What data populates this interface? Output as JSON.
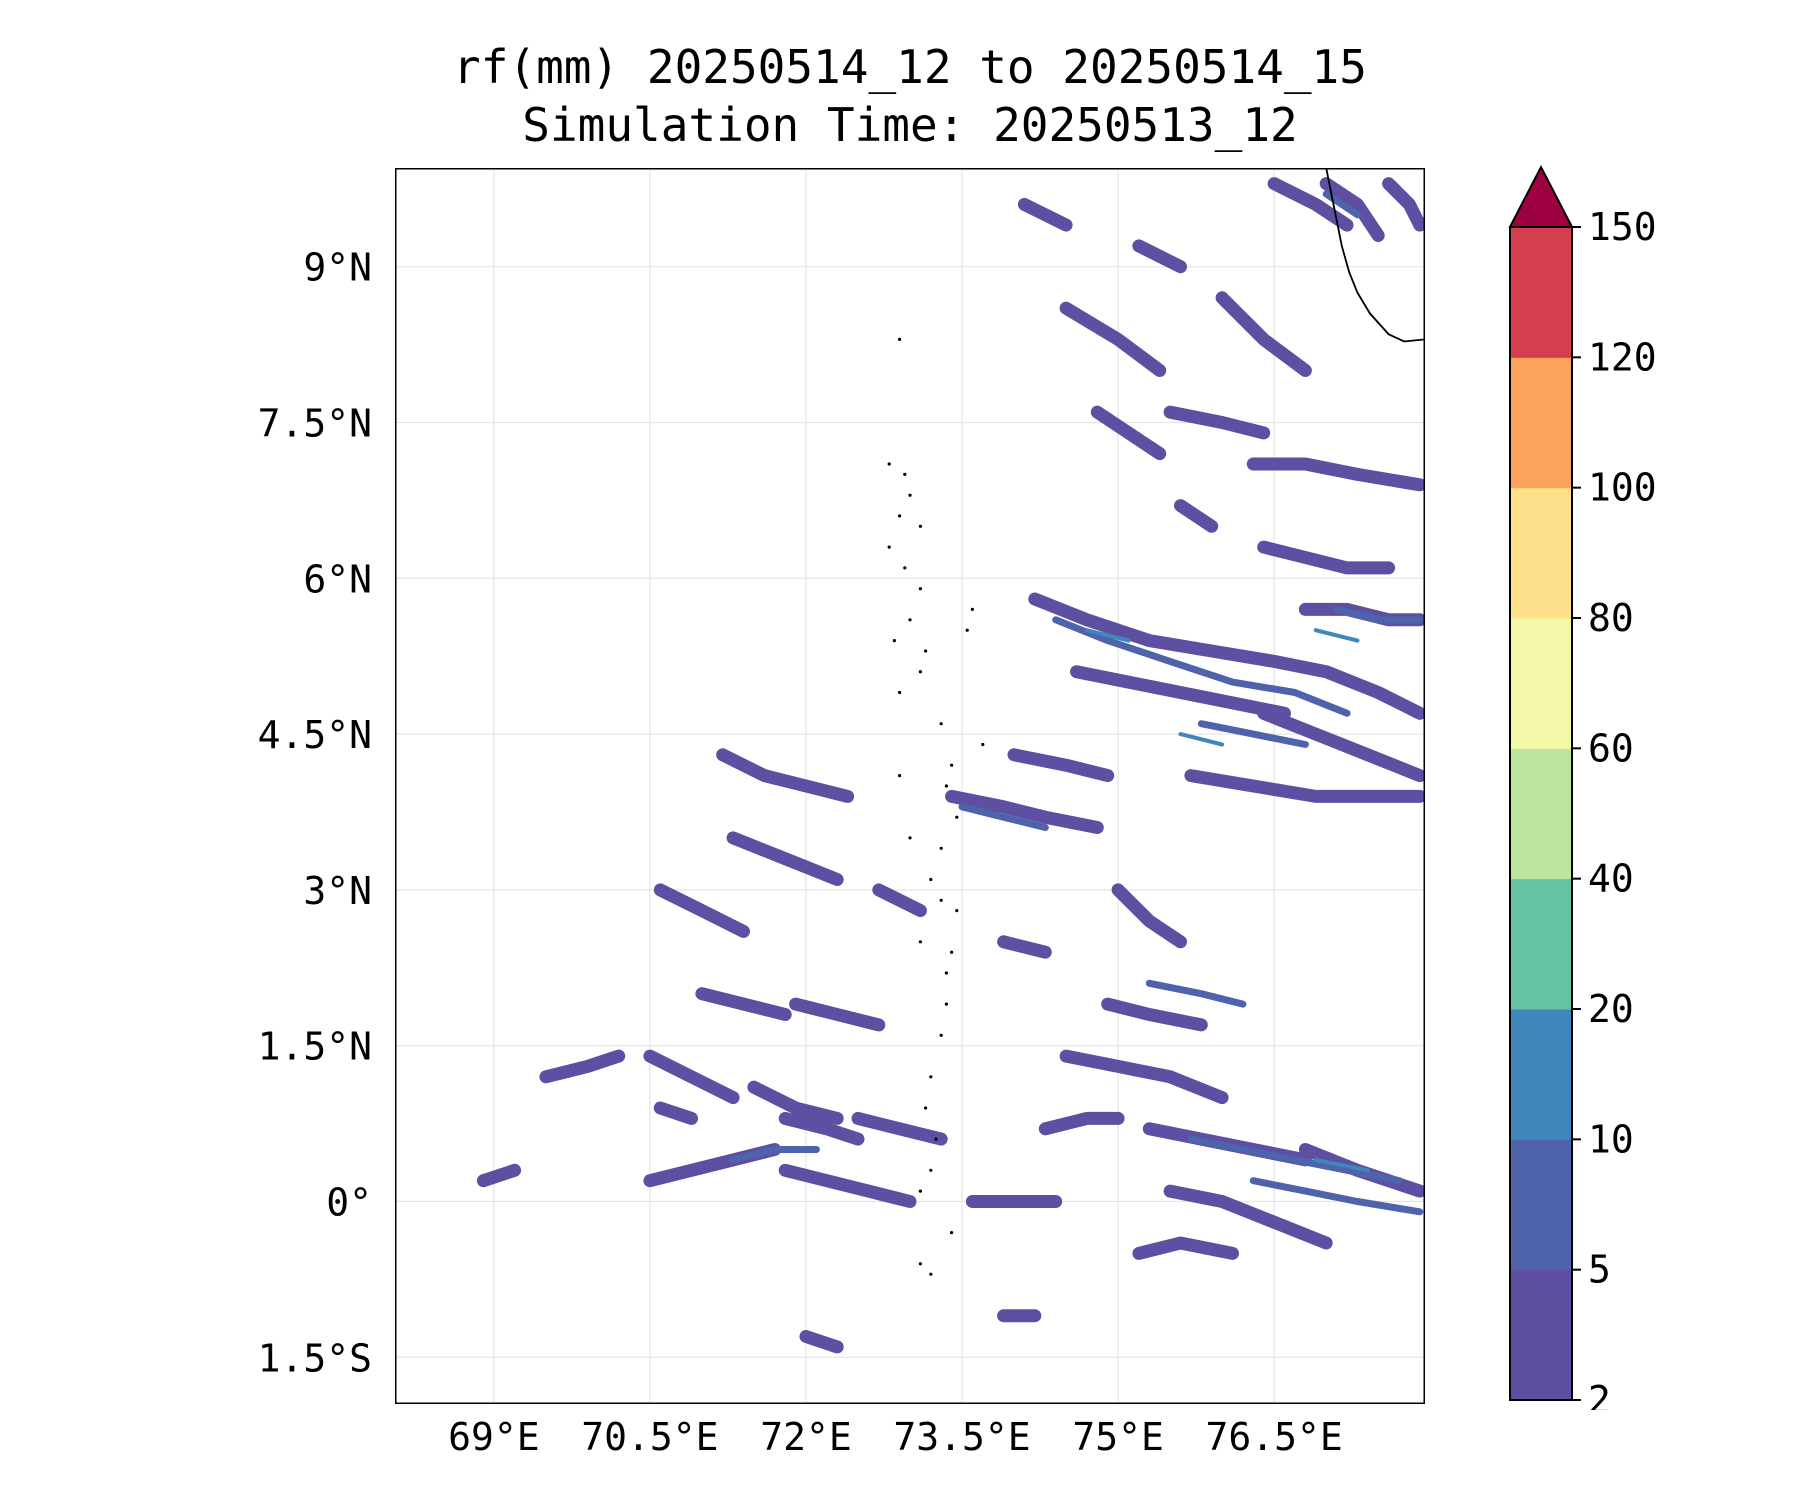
{
  "title": {
    "line1": "rf(mm) 20250514_12 to 20250514_15",
    "line2": "Simulation Time: 20250513_12"
  },
  "map": {
    "extent": {
      "lon_min": 68.05,
      "lon_max": 77.95,
      "lat_min": -1.95,
      "lat_max": 9.95
    },
    "lat_ticks": [
      {
        "value": 9,
        "label": "9°N"
      },
      {
        "value": 7.5,
        "label": "7.5°N"
      },
      {
        "value": 6,
        "label": "6°N"
      },
      {
        "value": 4.5,
        "label": "4.5°N"
      },
      {
        "value": 3,
        "label": "3°N"
      },
      {
        "value": 1.5,
        "label": "1.5°N"
      },
      {
        "value": 0,
        "label": "0°"
      },
      {
        "value": -1.5,
        "label": "1.5°S"
      }
    ],
    "lon_ticks": [
      {
        "value": 69,
        "label": "69°E"
      },
      {
        "value": 70.5,
        "label": "70.5°E"
      },
      {
        "value": 72,
        "label": "72°E"
      },
      {
        "value": 73.5,
        "label": "73.5°E"
      },
      {
        "value": 75,
        "label": "75°E"
      },
      {
        "value": 76.5,
        "label": "76.5°E"
      }
    ],
    "rain_colors": {
      "band_2_5": "#5e4fa2",
      "band_5_10": "#4f63ad",
      "band_10_20": "#3e86bb"
    },
    "rain_streaks_2_5": [
      [
        [
          71.2,
          4.3
        ],
        [
          71.6,
          4.1
        ],
        [
          72.0,
          4.0
        ],
        [
          72.4,
          3.9
        ]
      ],
      [
        [
          71.3,
          3.5
        ],
        [
          71.8,
          3.3
        ],
        [
          72.3,
          3.1
        ]
      ],
      [
        [
          70.6,
          3.0
        ],
        [
          71.0,
          2.8
        ],
        [
          71.4,
          2.6
        ]
      ],
      [
        [
          72.7,
          3.0
        ],
        [
          73.1,
          2.8
        ]
      ],
      [
        [
          71.0,
          2.0
        ],
        [
          71.4,
          1.9
        ],
        [
          71.8,
          1.8
        ]
      ],
      [
        [
          71.9,
          1.9
        ],
        [
          72.3,
          1.8
        ],
        [
          72.7,
          1.7
        ]
      ],
      [
        [
          70.5,
          1.4
        ],
        [
          70.9,
          1.2
        ],
        [
          71.3,
          1.0
        ]
      ],
      [
        [
          69.5,
          1.2
        ],
        [
          69.9,
          1.3
        ],
        [
          70.2,
          1.4
        ]
      ],
      [
        [
          71.5,
          1.1
        ],
        [
          71.9,
          0.9
        ],
        [
          72.3,
          0.8
        ]
      ],
      [
        [
          72.5,
          0.8
        ],
        [
          72.9,
          0.7
        ],
        [
          73.3,
          0.6
        ]
      ],
      [
        [
          70.5,
          0.2
        ],
        [
          70.9,
          0.3
        ],
        [
          71.3,
          0.4
        ],
        [
          71.7,
          0.5
        ]
      ],
      [
        [
          71.8,
          0.3
        ],
        [
          72.2,
          0.2
        ],
        [
          72.6,
          0.1
        ],
        [
          73.0,
          0.0
        ]
      ],
      [
        [
          71.8,
          0.8
        ],
        [
          72.2,
          0.7
        ],
        [
          72.5,
          0.6
        ]
      ],
      [
        [
          70.6,
          0.9
        ],
        [
          70.9,
          0.8
        ]
      ],
      [
        [
          73.4,
          3.9
        ],
        [
          73.9,
          3.8
        ],
        [
          74.3,
          3.7
        ],
        [
          74.8,
          3.6
        ]
      ],
      [
        [
          73.9,
          2.5
        ],
        [
          74.3,
          2.4
        ]
      ],
      [
        [
          75.0,
          3.0
        ],
        [
          75.3,
          2.7
        ],
        [
          75.6,
          2.5
        ]
      ],
      [
        [
          74.9,
          1.9
        ],
        [
          75.3,
          1.8
        ],
        [
          75.8,
          1.7
        ]
      ],
      [
        [
          74.5,
          1.4
        ],
        [
          75.0,
          1.3
        ],
        [
          75.5,
          1.2
        ],
        [
          76.0,
          1.0
        ]
      ],
      [
        [
          75.3,
          0.7
        ],
        [
          75.8,
          0.6
        ],
        [
          76.3,
          0.5
        ],
        [
          76.8,
          0.4
        ]
      ],
      [
        [
          75.5,
          0.1
        ],
        [
          76.0,
          0.0
        ],
        [
          76.5,
          -0.2
        ],
        [
          77.0,
          -0.4
        ]
      ],
      [
        [
          76.8,
          0.5
        ],
        [
          77.3,
          0.3
        ],
        [
          77.9,
          0.1
        ]
      ],
      [
        [
          74.3,
          0.7
        ],
        [
          74.7,
          0.8
        ],
        [
          75.0,
          0.8
        ]
      ],
      [
        [
          73.6,
          0.0
        ],
        [
          74.0,
          0.0
        ],
        [
          74.4,
          0.0
        ]
      ],
      [
        [
          75.2,
          -0.5
        ],
        [
          75.6,
          -0.4
        ],
        [
          76.1,
          -0.5
        ]
      ],
      [
        [
          72.0,
          -1.3
        ],
        [
          72.3,
          -1.4
        ]
      ],
      [
        [
          73.9,
          -1.1
        ],
        [
          74.2,
          -1.1
        ]
      ],
      [
        [
          74.2,
          5.8
        ],
        [
          74.7,
          5.6
        ],
        [
          75.3,
          5.4
        ],
        [
          75.9,
          5.3
        ],
        [
          76.5,
          5.2
        ],
        [
          77.0,
          5.1
        ],
        [
          77.5,
          4.9
        ],
        [
          77.9,
          4.7
        ]
      ],
      [
        [
          74.6,
          5.1
        ],
        [
          75.1,
          5.0
        ],
        [
          75.6,
          4.9
        ],
        [
          76.1,
          4.8
        ],
        [
          76.6,
          4.7
        ]
      ],
      [
        [
          75.7,
          4.1
        ],
        [
          76.3,
          4.0
        ],
        [
          76.9,
          3.9
        ],
        [
          77.5,
          3.9
        ],
        [
          77.9,
          3.9
        ]
      ],
      [
        [
          76.4,
          4.7
        ],
        [
          76.9,
          4.5
        ],
        [
          77.4,
          4.3
        ],
        [
          77.9,
          4.1
        ]
      ],
      [
        [
          76.8,
          5.7
        ],
        [
          77.2,
          5.7
        ],
        [
          77.6,
          5.6
        ],
        [
          77.9,
          5.6
        ]
      ],
      [
        [
          76.4,
          6.3
        ],
        [
          76.8,
          6.2
        ],
        [
          77.2,
          6.1
        ],
        [
          77.6,
          6.1
        ]
      ],
      [
        [
          76.3,
          7.1
        ],
        [
          76.8,
          7.1
        ],
        [
          77.3,
          7.0
        ],
        [
          77.9,
          6.9
        ]
      ],
      [
        [
          75.5,
          7.6
        ],
        [
          76.0,
          7.5
        ],
        [
          76.4,
          7.4
        ]
      ],
      [
        [
          74.1,
          9.6
        ],
        [
          74.5,
          9.4
        ]
      ],
      [
        [
          74.5,
          8.6
        ],
        [
          75.0,
          8.3
        ],
        [
          75.4,
          8.0
        ]
      ],
      [
        [
          75.2,
          9.2
        ],
        [
          75.6,
          9.0
        ]
      ],
      [
        [
          76.0,
          8.7
        ],
        [
          76.4,
          8.3
        ],
        [
          76.8,
          8.0
        ]
      ],
      [
        [
          76.5,
          9.8
        ],
        [
          76.9,
          9.6
        ],
        [
          77.2,
          9.4
        ]
      ],
      [
        [
          77.0,
          9.8
        ],
        [
          77.3,
          9.6
        ],
        [
          77.5,
          9.3
        ]
      ],
      [
        [
          77.6,
          9.8
        ],
        [
          77.8,
          9.6
        ],
        [
          77.9,
          9.4
        ]
      ],
      [
        [
          74.8,
          7.6
        ],
        [
          75.1,
          7.4
        ],
        [
          75.4,
          7.2
        ]
      ],
      [
        [
          75.6,
          6.7
        ],
        [
          75.9,
          6.5
        ]
      ],
      [
        [
          74.0,
          4.3
        ],
        [
          74.5,
          4.2
        ],
        [
          74.9,
          4.1
        ]
      ],
      [
        [
          68.9,
          0.2
        ],
        [
          69.2,
          0.3
        ]
      ]
    ],
    "rain_streaks_5_10": [
      [
        [
          74.4,
          5.6
        ],
        [
          74.9,
          5.4
        ],
        [
          75.5,
          5.2
        ],
        [
          76.1,
          5.0
        ],
        [
          76.7,
          4.9
        ],
        [
          77.2,
          4.7
        ]
      ],
      [
        [
          75.8,
          4.6
        ],
        [
          76.3,
          4.5
        ],
        [
          76.8,
          4.4
        ]
      ],
      [
        [
          75.3,
          2.1
        ],
        [
          75.8,
          2.0
        ],
        [
          76.2,
          1.9
        ]
      ],
      [
        [
          75.7,
          0.6
        ],
        [
          76.2,
          0.5
        ],
        [
          76.7,
          0.4
        ],
        [
          77.2,
          0.3
        ],
        [
          77.7,
          0.2
        ]
      ],
      [
        [
          76.3,
          0.2
        ],
        [
          76.8,
          0.1
        ],
        [
          77.3,
          0.0
        ],
        [
          77.9,
          -0.1
        ]
      ],
      [
        [
          73.5,
          3.8
        ],
        [
          73.9,
          3.7
        ],
        [
          74.3,
          3.6
        ]
      ],
      [
        [
          71.3,
          0.4
        ],
        [
          71.7,
          0.5
        ],
        [
          72.1,
          0.5
        ]
      ],
      [
        [
          77.1,
          5.7
        ],
        [
          77.5,
          5.6
        ],
        [
          77.9,
          5.6
        ]
      ],
      [
        [
          77.0,
          9.7
        ],
        [
          77.3,
          9.5
        ]
      ]
    ],
    "rain_streaks_10_20": [
      [
        [
          76.9,
          0.4
        ],
        [
          77.4,
          0.3
        ]
      ],
      [
        [
          75.6,
          4.5
        ],
        [
          76.0,
          4.4
        ]
      ],
      [
        [
          76.9,
          5.5
        ],
        [
          77.3,
          5.4
        ]
      ],
      [
        [
          74.7,
          5.5
        ],
        [
          75.1,
          5.4
        ]
      ]
    ],
    "coastline": [
      [
        77.0,
        9.95
      ],
      [
        77.05,
        9.7
      ],
      [
        77.1,
        9.45
      ],
      [
        77.15,
        9.2
      ],
      [
        77.22,
        8.95
      ],
      [
        77.3,
        8.75
      ],
      [
        77.42,
        8.55
      ],
      [
        77.6,
        8.35
      ],
      [
        77.75,
        8.28
      ],
      [
        77.95,
        8.3
      ],
      [
        78.0,
        8.35
      ],
      [
        78.0,
        9.95
      ]
    ],
    "islands": [
      [
        72.9,
        8.3
      ],
      [
        72.8,
        7.1
      ],
      [
        72.95,
        7.0
      ],
      [
        73.0,
        6.8
      ],
      [
        72.9,
        6.6
      ],
      [
        73.1,
        6.5
      ],
      [
        72.8,
        6.3
      ],
      [
        72.95,
        6.1
      ],
      [
        73.1,
        5.9
      ],
      [
        73.0,
        5.6
      ],
      [
        72.85,
        5.4
      ],
      [
        73.15,
        5.3
      ],
      [
        73.1,
        5.1
      ],
      [
        72.9,
        4.9
      ],
      [
        73.3,
        4.6
      ],
      [
        73.4,
        4.2
      ],
      [
        73.35,
        4.0
      ],
      [
        73.45,
        3.7
      ],
      [
        73.3,
        3.4
      ],
      [
        73.2,
        3.1
      ],
      [
        73.45,
        2.8
      ],
      [
        73.4,
        2.4
      ],
      [
        73.35,
        2.2
      ],
      [
        73.35,
        1.9
      ],
      [
        73.3,
        1.6
      ],
      [
        73.2,
        1.2
      ],
      [
        73.15,
        0.9
      ],
      [
        73.25,
        0.6
      ],
      [
        73.2,
        0.3
      ],
      [
        73.1,
        0.1
      ],
      [
        73.4,
        -0.3
      ],
      [
        73.1,
        -0.6
      ],
      [
        73.2,
        -0.7
      ],
      [
        73.6,
        5.7
      ],
      [
        73.55,
        5.5
      ],
      [
        73.7,
        4.4
      ],
      [
        72.9,
        4.1
      ],
      [
        73.0,
        3.5
      ],
      [
        73.3,
        2.9
      ],
      [
        73.1,
        2.5
      ]
    ]
  },
  "colorbar": {
    "levels": [
      2,
      5,
      10,
      20,
      40,
      60,
      80,
      100,
      120,
      150
    ],
    "labels": [
      "2",
      "5",
      "10",
      "20",
      "40",
      "60",
      "80",
      "100",
      "120",
      "150"
    ],
    "colors": [
      "#5e4fa2",
      "#4f63ad",
      "#3e86bb",
      "#66c2a5",
      "#bde5a0",
      "#f3f9a9",
      "#fee08b",
      "#fba35d",
      "#d53e4f"
    ],
    "extend_color": "#9e0142"
  }
}
